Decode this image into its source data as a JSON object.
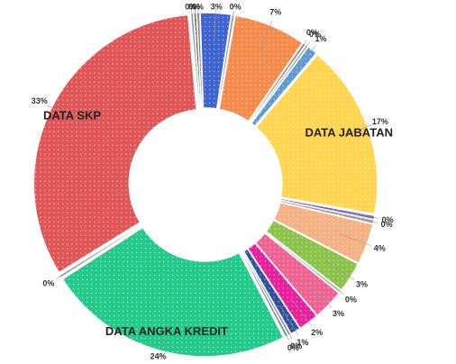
{
  "chart_data": {
    "type": "donut",
    "categories": [
      null,
      null,
      null,
      null,
      null,
      null,
      null,
      null,
      "DATA JABATAN",
      null,
      null,
      null,
      null,
      null,
      null,
      null,
      null,
      null,
      null,
      "DATA ANGKA KREDIT",
      null,
      "DATA SKP",
      null
    ],
    "values": [
      0.3,
      0.3,
      3,
      0.3,
      7,
      0.3,
      0.3,
      1,
      17,
      0.4,
      0.4,
      4,
      3,
      0.3,
      3,
      2,
      1,
      0.3,
      0.3,
      24,
      0.3,
      33,
      0.3
    ],
    "value_labels": [
      "0%",
      "0%",
      "3%",
      "0%",
      "7%",
      "0%",
      "0%",
      "1%",
      "17%",
      "0%",
      "0%",
      "4%",
      "3%",
      "0%",
      "3%",
      "2%",
      "1%",
      "0%",
      "0%",
      "24%",
      "0%",
      "33%",
      "0%"
    ],
    "colors": [
      "#555555",
      "#7a7a7a",
      "#3f63d0",
      "#9e9e9e",
      "#f58a4b",
      "#8d6e63",
      "#bdbdbd",
      "#5b9bd5",
      "#ffd54f",
      "#7e57c2",
      "#9e9e9e",
      "#f4b183",
      "#8bc34a",
      "#bdbdbd",
      "#f06292",
      "#e91e9c",
      "#2f4f9f",
      "#78909c",
      "#607d8b",
      "#22c98a",
      "#9e9e9e",
      "#e05656",
      "#9e9e9e"
    ]
  }
}
